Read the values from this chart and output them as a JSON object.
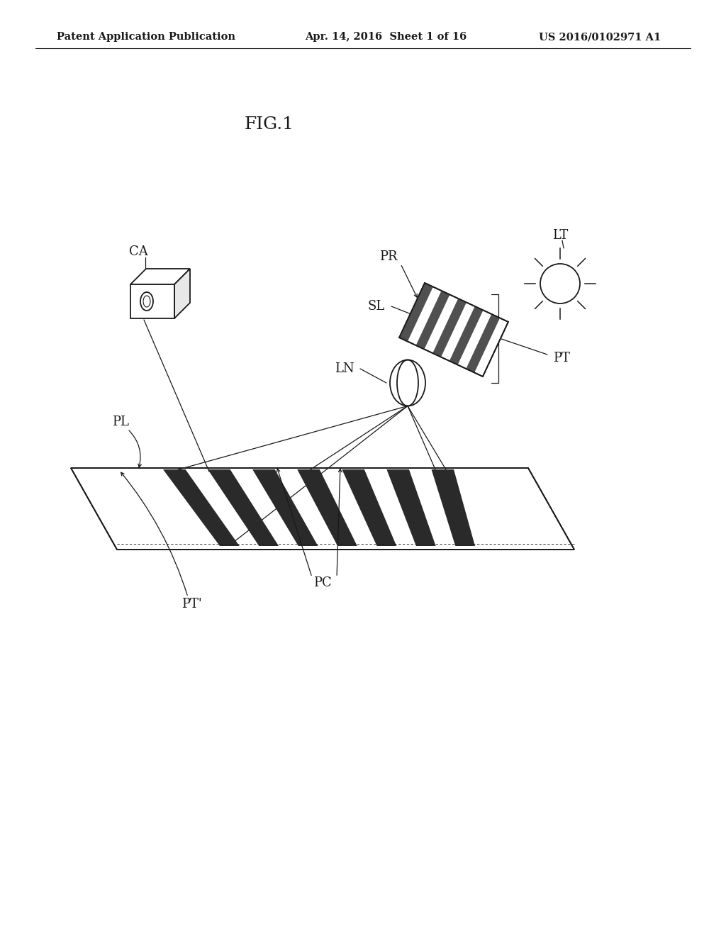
{
  "bg_color": "#ffffff",
  "header_text": "Patent Application Publication",
  "header_date": "Apr. 14, 2016  Sheet 1 of 16",
  "header_patent": "US 2016/0102971 A1",
  "fig_label": "FIG.1",
  "line_color": "#1a1a1a",
  "text_color": "#1a1a1a"
}
